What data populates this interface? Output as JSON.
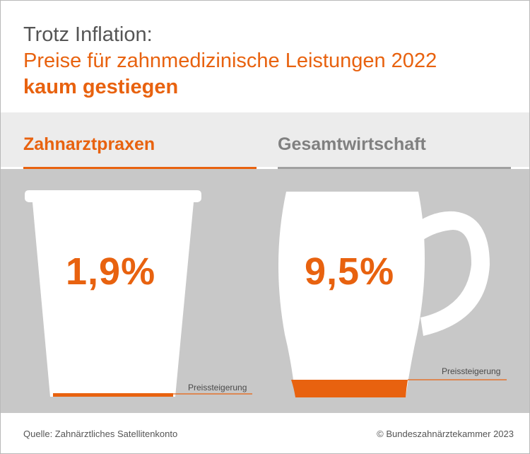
{
  "header": {
    "line1": "Trotz Inflation:",
    "line2": "Preise für zahnmedizinische Leistungen 2022",
    "line3": "kaum gestiegen"
  },
  "chart_data": {
    "type": "bar",
    "categories": [
      "Zahnarztpraxen",
      "Gesamtwirtschaft"
    ],
    "values": [
      1.9,
      9.5
    ],
    "value_labels": [
      "1,9%",
      "9,5%"
    ],
    "unit": "%",
    "annotations": [
      "Preissteigerung",
      "Preissteigerung"
    ],
    "ylim": [
      0,
      100
    ],
    "colors": {
      "accent": "#e8620f",
      "muted": "#808080",
      "panel": "#c8c8c8",
      "vessel": "#ffffff"
    }
  },
  "footer": {
    "source": "Quelle: Zahnärztliches Satellitenkonto",
    "copyright": "© Bundeszahnärztekammer 2023"
  }
}
